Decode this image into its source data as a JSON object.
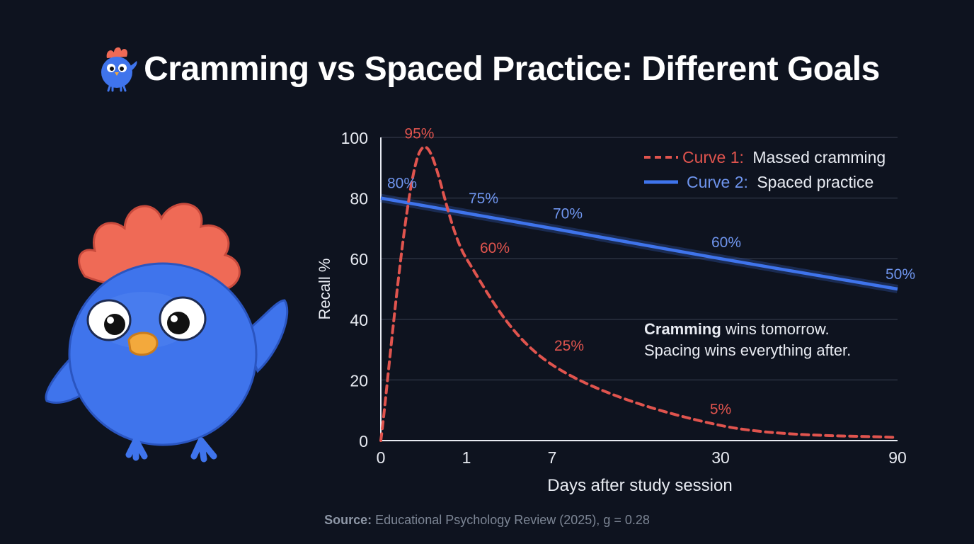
{
  "title": "Cramming vs Spaced Practice: Different Goals",
  "colors": {
    "background": "#0e131f",
    "cramming": "#e0544e",
    "spaced": "#3f74ec",
    "spaced_label": "#6f95ee",
    "grid": "#2b3140"
  },
  "chart_data": {
    "type": "line",
    "title": "Cramming vs Spaced Practice: Different Goals",
    "xlabel": "Days after study session",
    "ylabel": "Recall %",
    "x_ticks": [
      "0",
      "1",
      "7",
      "30",
      "90"
    ],
    "y_ticks": [
      0,
      20,
      40,
      60,
      80,
      100
    ],
    "ylim": [
      0,
      100
    ],
    "grid": true,
    "legend_position": "top-right",
    "series": [
      {
        "name": "Massed cramming",
        "legend_prefix": "Curve 1:",
        "style": "dashed",
        "x": [
          "0",
          "0.45",
          "1",
          "7",
          "30",
          "90"
        ],
        "values": [
          0,
          95,
          60,
          25,
          5,
          1
        ],
        "labels": [
          {
            "x": "0.45",
            "y": 95,
            "text": "95%"
          },
          {
            "x": "1",
            "y": 60,
            "text": "60%"
          },
          {
            "x": "7",
            "y": 25,
            "text": "25%"
          },
          {
            "x": "30",
            "y": 5,
            "text": "5%"
          }
        ]
      },
      {
        "name": "Spaced practice",
        "legend_prefix": "Curve 2:",
        "style": "solid",
        "x": [
          "0",
          "1",
          "7",
          "30",
          "90"
        ],
        "values": [
          80,
          75,
          70,
          60,
          50
        ],
        "labels": [
          {
            "x": "0",
            "y": 80,
            "text": "80%"
          },
          {
            "x": "1",
            "y": 75,
            "text": "75%"
          },
          {
            "x": "7",
            "y": 70,
            "text": "70%"
          },
          {
            "x": "30",
            "y": 60,
            "text": "60%"
          },
          {
            "x": "90",
            "y": 50,
            "text": "50%"
          }
        ]
      }
    ],
    "annotation": {
      "bold": "Cramming",
      "line1_rest": " wins tomorrow.",
      "line2": "Spacing wins everything after."
    }
  },
  "source": {
    "label": "Source:",
    "text": " Educational Psychology Review (2025), g = 0.28"
  },
  "icons": {
    "mascot": "blue-bird-mascot-icon",
    "title_icon": "bird-icon"
  }
}
